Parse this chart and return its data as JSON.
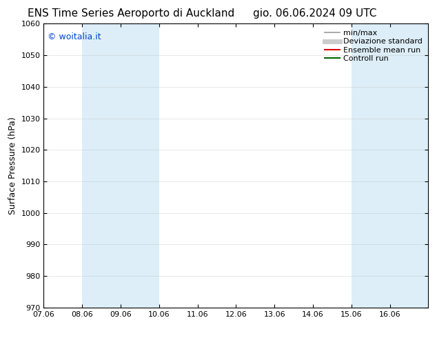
{
  "title_left": "ENS Time Series Aeroporto di Auckland",
  "title_right": "gio. 06.06.2024 09 UTC",
  "ylabel": "Surface Pressure (hPa)",
  "ylim": [
    970,
    1060
  ],
  "yticks": [
    970,
    980,
    990,
    1000,
    1010,
    1020,
    1030,
    1040,
    1050,
    1060
  ],
  "xlim_start": 0,
  "xlim_end": 10,
  "xtick_labels": [
    "07.06",
    "08.06",
    "09.06",
    "10.06",
    "11.06",
    "12.06",
    "13.06",
    "14.06",
    "15.06",
    "16.06"
  ],
  "shade_bands": [
    {
      "xmin": 1,
      "xmax": 3
    },
    {
      "xmin": 8,
      "xmax": 10
    }
  ],
  "shade_color": "#ddeef8",
  "background_color": "#ffffff",
  "watermark_text": "© woitalia.it",
  "watermark_color": "#0044cc",
  "legend_items": [
    {
      "label": "min/max",
      "color": "#999999",
      "lw": 1.2,
      "style": "solid"
    },
    {
      "label": "Deviazione standard",
      "color": "#cccccc",
      "lw": 5,
      "style": "solid"
    },
    {
      "label": "Ensemble mean run",
      "color": "#dd0000",
      "lw": 1.5,
      "style": "solid"
    },
    {
      "label": "Controll run",
      "color": "#006600",
      "lw": 1.5,
      "style": "solid"
    }
  ],
  "grid_color": "#bbbbbb",
  "grid_alpha": 0.4,
  "title_fontsize": 11,
  "label_fontsize": 9,
  "tick_fontsize": 8,
  "watermark_fontsize": 9,
  "legend_fontsize": 8
}
